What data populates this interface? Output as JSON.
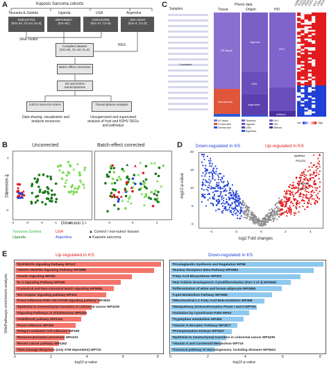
{
  "panels": [
    "A",
    "B",
    "C",
    "D",
    "E"
  ],
  "panelA": {
    "title": "Kaposis Sarcoma cohorts",
    "cohorts": [
      {
        "region": "Tanzania & Zambia",
        "id": "GSE147704",
        "detail": "(KS=24, Ct=24, N=3)"
      },
      {
        "region": "Uganda",
        "id": "SRP496827",
        "detail": "(KS=61)"
      },
      {
        "region": "USA",
        "id": "GSE241095",
        "detail": "(KS=17, Ct=6)"
      },
      {
        "region": "Argentina",
        "id": "U54 cohort",
        "detail": "(KS=4, Ct=3)"
      }
    ],
    "tool1": "SRA-Toolkit",
    "tool2": "NGS",
    "compiled": "Compiled dataset",
    "compiled_detail": "(KS=94, Ct=34, N=3)",
    "batch": "Batch effect correction",
    "transcriptomes": "KS and KSHV transcriptomes",
    "xena": "USCS Xena KS-omics",
    "analysis": "Transcriptome analysis",
    "xena_note": "Data sharing, visualization and analysis resources",
    "analysis_note": "Unsupervised and supervised analysis of host and KSHV DEGs and pathways"
  },
  "panelB": {
    "title_left": "Uncorrected",
    "title_right": "Batch-effect corrected",
    "ylabel": "Dimension 2",
    "xlabel": "Dimension 1",
    "xticks": [
      "-4",
      "-3",
      "-2",
      "-1",
      "0",
      "1"
    ],
    "yticks": [
      "-4",
      "-2",
      "0",
      "2"
    ],
    "xticks_right": [
      "-2",
      "0",
      "2"
    ],
    "legend": {
      "tz": "Tanzania-Zambia",
      "ug": "Uganda",
      "us": "USA",
      "ar": "Argentina",
      "control": "Control / non-tumor tissues",
      "ks": "Kaposis sarcoma"
    },
    "colors": {
      "tz": "#7ed957",
      "ug": "#1a7a1a",
      "us": "#e31a1c",
      "ar": "#1f3fd6"
    }
  },
  "panelC": {
    "samples": "Samples",
    "pheno": "Pheno data",
    "cols": [
      "Tissue",
      "Origen",
      "HIV"
    ],
    "tissue_label": "KS tissue",
    "tissue_label2": "Normal skin",
    "origen_labels": [
      "Uganda",
      "USA",
      "Argentina"
    ],
    "hiv_labels": [
      "HIV+",
      "Without"
    ],
    "genes": [
      "GZMB",
      "SLC1",
      "PDGFA",
      "PDGFB",
      "CXCL1",
      "K13",
      "LANA",
      "vFLIP"
    ],
    "legend_low": "low",
    "legend_high": "high",
    "legend": [
      "KS tissue",
      "Control skin",
      "Normal skin",
      "Tanzania",
      "Uganda",
      "USA",
      "Argentina",
      "HIV+",
      "HIV-",
      "Without"
    ],
    "sample_note": "1 samples"
  },
  "panelD": {
    "title_down": "Down-regulated in KS",
    "title_up": "Up-regulated in KS",
    "ylabel": "-log10 p-value",
    "xlabel": "log2 Fold changes",
    "xticks": [
      "-4",
      "-2",
      "0",
      "2",
      "4"
    ],
    "yticks": [
      "0",
      "5",
      "10",
      "15",
      "20"
    ],
    "genes": [
      "BMP8A",
      "PALD1",
      "MMP11",
      "NOS2"
    ]
  },
  "panelE": {
    "ylabel": "WikiPathways enrichment analysis",
    "title_up": "Up-regulated in KS",
    "title_down": "Down-regulated in KS",
    "xlabel": "-log10 p-value",
    "xticks_left": [
      "0",
      "2",
      "4",
      "6",
      "8"
    ],
    "xticks_right": [
      "0",
      "2",
      "4",
      "6",
      "8"
    ],
    "up": [
      {
        "name": "*EGF/EGFR Signaling Pathway WP437",
        "value": 8.0
      },
      {
        "name": "*VEGFA-VEGFR2 Signaling Pathway WP3888",
        "value": 7.6
      },
      {
        "name": "*Insulin Signaling WP481",
        "value": 6.4
      },
      {
        "name": "*IL-3 Signaling Pathway WP286",
        "value": 5.8
      },
      {
        "name": "*Canonical and Non-canonical Notch signaling WP3845",
        "value": 5.4
      },
      {
        "name": "*Kit receptor signaling pathway WP304",
        "value": 5.0
      },
      {
        "name": "*Focal Adhesion-PI3K-Akt-mTOR-signaling pathway WP3932",
        "value": 4.6
      },
      {
        "name": "*Epithelial to mesenchymal transition in colorectal cancer WP4239",
        "value": 4.2
      },
      {
        "name": "*Signaling Pathways in Glioblastoma WP2261",
        "value": 3.9
      },
      {
        "name": "*AGE/RAGE pathway WP2324",
        "value": 3.6
      },
      {
        "name": "*Focal Adhesion WP306",
        "value": 3.3
      },
      {
        "name": "*Integrin-mediated Cell Adhesion WP185",
        "value": 3.0
      },
      {
        "name": "*Neovascularisation processes WP4331",
        "value": 2.7
      },
      {
        "name": "*Breast cancer pathway WP4262",
        "value": 2.4
      },
      {
        "name": "*DNA Damage Response (only ATM dependent) WP710",
        "value": 2.1
      }
    ],
    "down": [
      {
        "name": "*Prostaglandin Synthesis and Regulation WP98",
        "value": 8.0
      },
      {
        "name": "*Nuclear Receptors Meta-Pathway WP2882",
        "value": 7.5
      },
      {
        "name": "*Fatty Acid Biosynthesis WP357",
        "value": 6.8
      },
      {
        "name": "*Hair Follicle Development: Cytodifferentiation (Part 3 of 3) WP2840",
        "value": 6.3
      },
      {
        "name": "*Differentiation of white and brown adipocyte WP2895",
        "value": 5.8
      },
      {
        "name": "*Lipid Metabolism Pathway WP3965",
        "value": 5.3
      },
      {
        "name": "*Mitochondrial LC-Fatty Acid Beta-Oxidation WP368",
        "value": 4.9
      },
      {
        "name": "*Metapathway biotransformation Phase I and II WP702",
        "value": 4.5
      },
      {
        "name": "*Oxidation by Cytochrome P450 WP43",
        "value": 4.1
      },
      {
        "name": "*Tryptophan metabolism WP465",
        "value": 3.8
      },
      {
        "name": "*Vitamin D Receptor Pathway WP2877",
        "value": 3.5
      },
      {
        "name": "*Preimplantation Embryo WP3527",
        "value": 3.2
      },
      {
        "name": "*Epithelial to mesenchymal transition in colorectal cancer WP4239",
        "value": 2.9
      },
      {
        "name": "*Vitamin A and Carotenoid Metabolism WP716",
        "value": 2.6
      },
      {
        "name": "*Classical pathway of steroidogenesis, including diseases WP4523",
        "value": 2.3
      }
    ],
    "colors": {
      "up": "#f4756b",
      "down": "#8ec8ee"
    }
  }
}
